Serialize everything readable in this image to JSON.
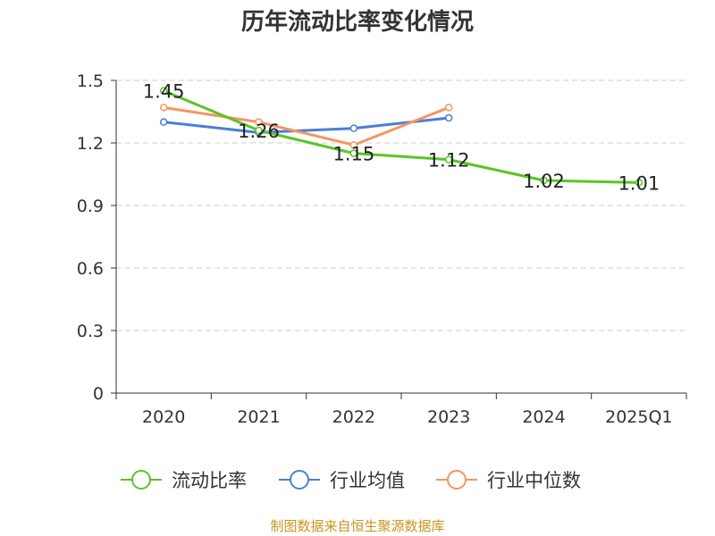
{
  "chart_data": {
    "type": "line",
    "title": "历年流动比率变化情况",
    "categories": [
      "2020",
      "2021",
      "2022",
      "2023",
      "2024",
      "2025Q1"
    ],
    "ylim": [
      0,
      1.5
    ],
    "yticks": [
      "0",
      "0.3",
      "0.6",
      "0.9",
      "1.2",
      "1.5"
    ],
    "grid": true,
    "legend_position": "bottom",
    "series": [
      {
        "name": "流动比率",
        "color": "#5cc424",
        "values": [
          1.45,
          1.26,
          1.15,
          1.12,
          1.02,
          1.01
        ],
        "labels": [
          "1.45",
          "1.26",
          "1.15",
          "1.12",
          "1.02",
          "1.01"
        ]
      },
      {
        "name": "行业均值",
        "color": "#4a7fd8",
        "values": [
          1.3,
          1.25,
          1.27,
          1.32,
          null,
          null
        ]
      },
      {
        "name": "行业中位数",
        "color": "#f59560",
        "values": [
          1.37,
          1.3,
          1.19,
          1.37,
          null,
          null
        ]
      }
    ],
    "source": "制图数据来自恒生聚源数据库"
  }
}
